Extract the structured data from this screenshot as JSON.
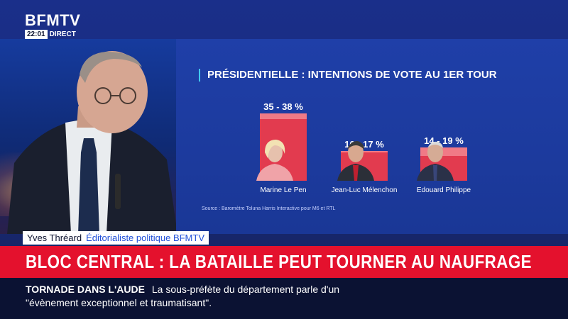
{
  "channel": {
    "logo": "BFMTV",
    "clock": "22:01",
    "live_label": "DIRECT"
  },
  "chart": {
    "title": "PRÉSIDENTIELLE : INTENTIONS DE VOTE AU 1ER TOUR",
    "source": "Source : Baromètre Toluna Harris Interactive pour M6 et RTL",
    "colors": {
      "bar": "#e23b4f",
      "bar_range": "#f07a86",
      "accent": "#41c9f0"
    }
  },
  "chart_data": {
    "type": "bar",
    "title": "PRÉSIDENTIELLE : INTENTIONS DE VOTE AU 1ER TOUR",
    "categories": [
      "Marine Le Pen",
      "Jean-Luc Mélenchon",
      "Edouard Philippe"
    ],
    "series": [
      {
        "low": [
          35,
          16,
          14
        ],
        "high": [
          38,
          17,
          19
        ]
      }
    ],
    "labels": [
      "35 - 38 %",
      "16 - 17 %",
      "14 - 19 %"
    ],
    "ylim": [
      0,
      40
    ],
    "grid": false,
    "legend": "none"
  },
  "lower_third": {
    "speaker_name": "Yves Thréard",
    "speaker_role": "Éditorialiste politique BFMTV",
    "headline": "BLOC CENTRAL : LA BATAILLE PEUT TOURNER AU NAUFRAGE",
    "colors": {
      "headline_bg": "#e4112d"
    }
  },
  "ticker": {
    "tag": "TORNADE DANS L'AUDE",
    "line1": "La sous-préfète du département parle d'un",
    "line2": "\"évènement exceptionnel et traumatisant\"."
  }
}
